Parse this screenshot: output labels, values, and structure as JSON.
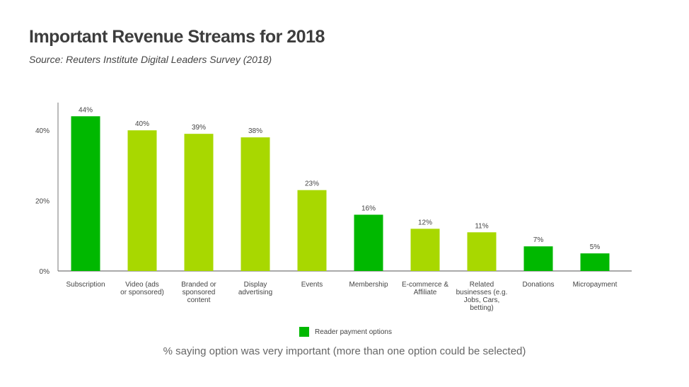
{
  "colors": {
    "reader_payment": "#00B800",
    "other": "#A8D800",
    "axis": "#777777"
  },
  "chart_data": {
    "type": "bar",
    "title": "Important Revenue Streams for 2018",
    "subtitle": "Source: Reuters Institute Digital Leaders Survey (2018)",
    "categories": [
      [
        "Subscription"
      ],
      [
        "Video (ads",
        "or sponsored)"
      ],
      [
        "Branded or",
        "sponsored",
        "content"
      ],
      [
        "Display",
        "advertising"
      ],
      [
        "Events"
      ],
      [
        "Membership"
      ],
      [
        "E-commerce &",
        "Affiliate"
      ],
      [
        "Related",
        "businesses (e.g.",
        "Jobs, Cars,",
        "betting)"
      ],
      [
        "Donations"
      ],
      [
        "Micropayment"
      ]
    ],
    "values": [
      44,
      40,
      39,
      38,
      23,
      16,
      12,
      11,
      7,
      5
    ],
    "data_labels": [
      "44%",
      "40%",
      "39%",
      "38%",
      "23%",
      "16%",
      "12%",
      "11%",
      "7%",
      "5%"
    ],
    "reader_payment": [
      true,
      false,
      false,
      false,
      false,
      true,
      false,
      false,
      true,
      true
    ],
    "yticks": [
      0,
      20,
      40
    ],
    "ytick_labels": [
      "0%",
      "20%",
      "40%"
    ],
    "ylim": [
      0,
      48
    ],
    "grid": false,
    "legend": {
      "entries": [
        "Reader payment options"
      ],
      "placement": "bottom"
    },
    "note": "% saying option was very important (more than one option could be selected)"
  }
}
